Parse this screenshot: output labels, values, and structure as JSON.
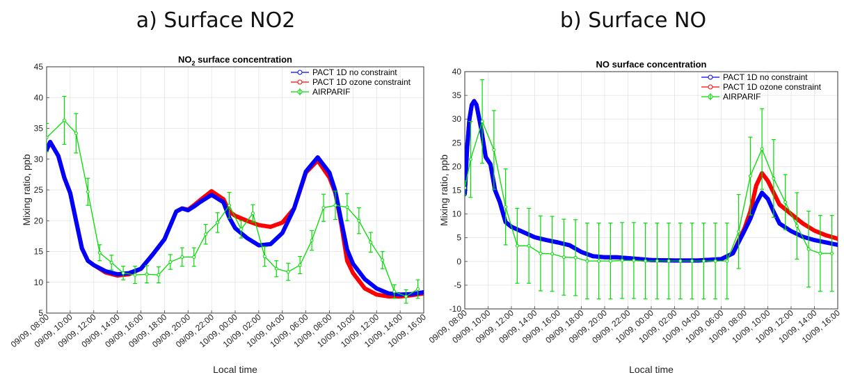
{
  "headings": {
    "a": "a) Surface NO2",
    "b": "b) Surface NO"
  },
  "chart_data": [
    {
      "type": "line",
      "title": "NO2 surface concentration",
      "title_main": "NO",
      "title_sub": "2",
      "title_rest": " surface concentration",
      "xlabel": "Local time",
      "ylabel": "Mixing ratio, ppb",
      "xlim": [
        0,
        32
      ],
      "ylim": [
        5,
        45
      ],
      "yticks": [
        5,
        10,
        15,
        20,
        25,
        30,
        35,
        40,
        45
      ],
      "xtick_hours": [
        0,
        2,
        4,
        6,
        8,
        10,
        12,
        14,
        16,
        18,
        20,
        22,
        24,
        26,
        28,
        30,
        32
      ],
      "xtick_labels": [
        "09/09, 08:00",
        "09/09, 10:00",
        "09/09, 12:00",
        "09/09, 14:00",
        "09/09, 16:00",
        "09/09, 18:00",
        "09/09, 20:00",
        "09/09, 22:00",
        "10/09, 00:00",
        "10/09, 02:00",
        "10/09, 04:00",
        "10/09, 06:00",
        "10/09, 08:00",
        "10/09, 10:00",
        "10/09, 12:00",
        "10/09, 14:00",
        "10/09, 16:00"
      ],
      "grid": true,
      "legend_position": "top-right",
      "colors": {
        "blue": "#0000ff",
        "red": "#ff0000",
        "green": "#00dd00"
      },
      "series": [
        {
          "name": "PACT 1D no constraint",
          "color": "#0000ff",
          "x": [
            0,
            0.3,
            1,
            1.5,
            2,
            2.5,
            3,
            3.5,
            4,
            5,
            6,
            7,
            8,
            9,
            10,
            11,
            11.5,
            12,
            12.5,
            13,
            14,
            15,
            15.5,
            16,
            17,
            18,
            19,
            20,
            21,
            22,
            23,
            24,
            24.5,
            25,
            25.5,
            26,
            27,
            28,
            29,
            30,
            31,
            32
          ],
          "y": [
            31.5,
            32.8,
            30.5,
            27,
            24.5,
            20,
            15.5,
            13.5,
            12.8,
            11.8,
            11.3,
            11.5,
            12.2,
            14.5,
            17,
            21.5,
            22,
            21.7,
            22.3,
            23,
            24.2,
            23,
            20.5,
            18.8,
            17.2,
            16,
            16.2,
            18,
            22,
            28,
            30.3,
            27.8,
            24.8,
            20,
            15.3,
            13,
            10.5,
            9,
            8.2,
            8,
            8.1,
            8.4
          ]
        },
        {
          "name": "PACT 1D ozone constraint",
          "color": "#ff0000",
          "x": [
            0,
            0.3,
            1,
            1.5,
            2,
            2.5,
            3,
            3.5,
            4,
            5,
            6,
            7,
            8,
            9,
            10,
            11,
            11.5,
            12,
            12.5,
            13,
            14,
            15,
            15.5,
            16,
            17,
            18,
            19,
            20,
            21,
            22,
            23,
            24,
            24.5,
            25,
            25.5,
            26,
            27,
            28,
            29,
            30,
            31,
            32
          ],
          "y": [
            31.5,
            32.8,
            30.5,
            27,
            24.5,
            20,
            15.5,
            13.5,
            12.8,
            11.6,
            11.1,
            11.3,
            12.2,
            14.5,
            17,
            21.5,
            22,
            21.8,
            22.5,
            23.3,
            24.8,
            23.5,
            21.5,
            20.8,
            20,
            19.3,
            19,
            19.7,
            22,
            27.8,
            29.8,
            27,
            24.5,
            19.5,
            13.5,
            11.5,
            9,
            8,
            7.7,
            7.7,
            7.9,
            8.2
          ]
        },
        {
          "name": "AIRPARIF",
          "color": "#00dd00",
          "x": [
            0,
            1.5,
            2.5,
            3.5,
            4.5,
            5.5,
            6.5,
            7.5,
            8.5,
            9.5,
            10.5,
            11.5,
            12.5,
            13.5,
            14.5,
            15.5,
            16.5,
            17.5,
            18.5,
            19.5,
            20.5,
            21.5,
            22.5,
            23.5,
            24.5,
            25.5,
            26.5,
            27.5,
            28.5,
            29.5,
            30.5,
            31.5
          ],
          "y": [
            33.5,
            36.3,
            34.2,
            24.7,
            14.8,
            13.2,
            11.5,
            11.2,
            11.3,
            11.2,
            13.3,
            14.1,
            14.1,
            17.8,
            19.7,
            22.5,
            18.6,
            21.2,
            14.2,
            12.2,
            11.7,
            12.8,
            16.8,
            22.1,
            22.5,
            22.2,
            20,
            16.5,
            13.6,
            8.5,
            7.7,
            8.9
          ],
          "err": [
            2.3,
            3.9,
            3.2,
            2.2,
            1.3,
            1.2,
            1.1,
            1.4,
            1.4,
            1.3,
            1.2,
            1.5,
            1.5,
            1.6,
            1.6,
            2.1,
            1.4,
            1.4,
            1.6,
            1.3,
            1.4,
            1.4,
            1.6,
            2.2,
            2.3,
            2.2,
            2.1,
            1.6,
            1.4,
            1.1,
            1.1,
            1.5
          ]
        }
      ]
    },
    {
      "type": "line",
      "title": "NO surface concentration",
      "title_main": "NO surface concentration",
      "title_sub": "",
      "title_rest": "",
      "xlabel": "Local time",
      "ylabel": "Mixing ratio, ppb",
      "xlim": [
        0,
        32
      ],
      "ylim": [
        -10,
        40
      ],
      "yticks": [
        -10,
        -5,
        0,
        5,
        10,
        15,
        20,
        25,
        30,
        35,
        40
      ],
      "xtick_hours": [
        0,
        2,
        4,
        6,
        8,
        10,
        12,
        14,
        16,
        18,
        20,
        22,
        24,
        26,
        28,
        30,
        32
      ],
      "xtick_labels": [
        "09/09, 08:00",
        "09/09, 10:00",
        "09/09, 12:00",
        "09/09, 14:00",
        "09/09, 16:00",
        "09/09, 18:00",
        "09/09, 20:00",
        "09/09, 22:00",
        "10/09, 00:00",
        "10/09, 02:00",
        "10/09, 04:00",
        "10/09, 06:00",
        "10/09, 08:00",
        "10/09, 10:00",
        "10/09, 12:00",
        "10/09, 14:00",
        "10/09, 16:00"
      ],
      "grid": true,
      "legend_position": "top-right",
      "colors": {
        "blue": "#0000ff",
        "red": "#ff0000",
        "green": "#00dd00"
      },
      "series": [
        {
          "name": "PACT 1D no constraint",
          "color": "#0000ff",
          "x": [
            0,
            0.2,
            0.4,
            0.6,
            0.8,
            1,
            1.4,
            1.8,
            2.2,
            2.6,
            3,
            3.5,
            4,
            5,
            6,
            7,
            8,
            9,
            10,
            11,
            12,
            13,
            14,
            16,
            18,
            20,
            22,
            23,
            24,
            24.5,
            25,
            25.5,
            26,
            26.5,
            27,
            28,
            29,
            30,
            31,
            32
          ],
          "y": [
            14.2,
            24,
            30,
            33,
            33.8,
            33,
            28,
            22,
            20.5,
            15,
            12.5,
            8.3,
            7.3,
            6.2,
            5.1,
            4.5,
            4,
            3.4,
            2,
            1.1,
            0.9,
            0.9,
            0.7,
            0.3,
            0.2,
            0.2,
            0.5,
            1.7,
            6.5,
            9,
            12.2,
            14.5,
            13.2,
            10.5,
            8,
            6.4,
            5.2,
            4.5,
            4,
            3.5
          ]
        },
        {
          "name": "PACT 1D ozone constraint",
          "color": "#ff0000",
          "x": [
            0,
            0.2,
            0.4,
            0.6,
            0.8,
            1,
            1.4,
            1.8,
            2.2,
            2.6,
            3,
            3.5,
            4,
            5,
            6,
            7,
            8,
            9,
            10,
            11,
            12,
            13,
            14,
            16,
            18,
            20,
            22,
            23,
            24,
            24.5,
            25,
            25.5,
            26,
            26.5,
            27,
            28,
            29,
            30,
            31,
            32
          ],
          "y": [
            14.2,
            24,
            30,
            33,
            33.8,
            33,
            28,
            22,
            20.5,
            15,
            12.5,
            8.3,
            7.3,
            6.2,
            5.1,
            4.5,
            4,
            3.4,
            2,
            1.1,
            0.9,
            0.9,
            0.7,
            0.3,
            0.2,
            0.2,
            0.5,
            1.7,
            7,
            10.5,
            16,
            18.6,
            17,
            14.5,
            12,
            10,
            8,
            6.5,
            5.5,
            4.8
          ]
        },
        {
          "name": "AIRPARIF",
          "color": "#00dd00",
          "x": [
            0,
            0.5,
            1.5,
            2.5,
            3.5,
            4.5,
            5.5,
            6.5,
            7.5,
            8.5,
            9.5,
            10.5,
            11.5,
            12.5,
            13.5,
            14.5,
            15.5,
            16.5,
            17.5,
            18.5,
            19.5,
            20.5,
            21.5,
            22.5,
            23.5,
            24.5,
            25.5,
            26.5,
            27.5,
            28.5,
            29.5,
            30.5,
            31.5
          ],
          "y": [
            15.5,
            21.5,
            29.5,
            23.5,
            11.5,
            3.3,
            3.3,
            1.7,
            1.6,
            0.9,
            0.8,
            0.1,
            0.1,
            0.1,
            0.2,
            0.2,
            0.1,
            0.1,
            0.1,
            0.1,
            0.1,
            0.1,
            0.1,
            0.1,
            6.3,
            18,
            23.7,
            17.5,
            12.5,
            7.5,
            2.6,
            1.7,
            1.7
          ],
          "err": [
            1.5,
            8,
            8.8,
            8.3,
            8,
            7.9,
            7.9,
            7.9,
            7.9,
            8,
            8,
            8,
            8,
            8,
            8,
            8,
            8,
            8,
            8,
            8,
            8,
            8,
            8,
            8,
            7.8,
            8.2,
            8.5,
            8.2,
            5.8,
            7,
            8,
            8,
            8
          ]
        }
      ]
    }
  ]
}
